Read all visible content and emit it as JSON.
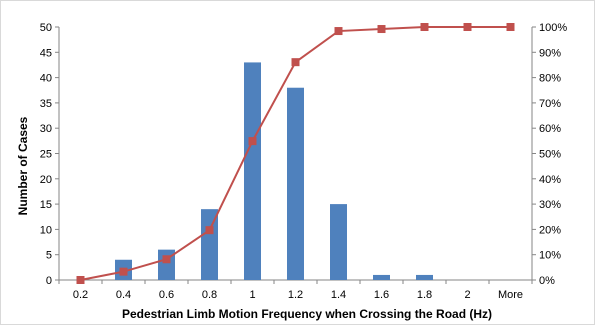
{
  "chart_data": {
    "type": "bar",
    "categories": [
      "0.2",
      "0.4",
      "0.6",
      "0.8",
      "1",
      "1.2",
      "1.4",
      "1.6",
      "1.8",
      "2",
      "More"
    ],
    "series": [
      {
        "type": "bar",
        "axis": "left",
        "color": "#4F81BD",
        "values": [
          0,
          4,
          6,
          14,
          43,
          38,
          15,
          1,
          1,
          0,
          0
        ]
      },
      {
        "type": "line",
        "axis": "right",
        "color": "#C0504D",
        "marker": "square",
        "values": [
          0,
          3.3,
          8.2,
          19.7,
          54.9,
          86.1,
          98.4,
          99.2,
          100,
          100,
          100
        ]
      }
    ],
    "xlabel": "Pedestrian Limb Motion Frequency when Crossing the Road (Hz)",
    "ylabel": "Number of Cases",
    "ylim": [
      0,
      50
    ],
    "yticks": [
      "0",
      "5",
      "10",
      "15",
      "20",
      "25",
      "30",
      "35",
      "40",
      "45",
      "50"
    ],
    "y2lim": [
      0,
      100
    ],
    "y2ticks": [
      "0%",
      "10%",
      "20%",
      "30%",
      "40%",
      "50%",
      "60%",
      "70%",
      "80%",
      "90%",
      "100%"
    ],
    "grid": false,
    "legend": "none"
  }
}
